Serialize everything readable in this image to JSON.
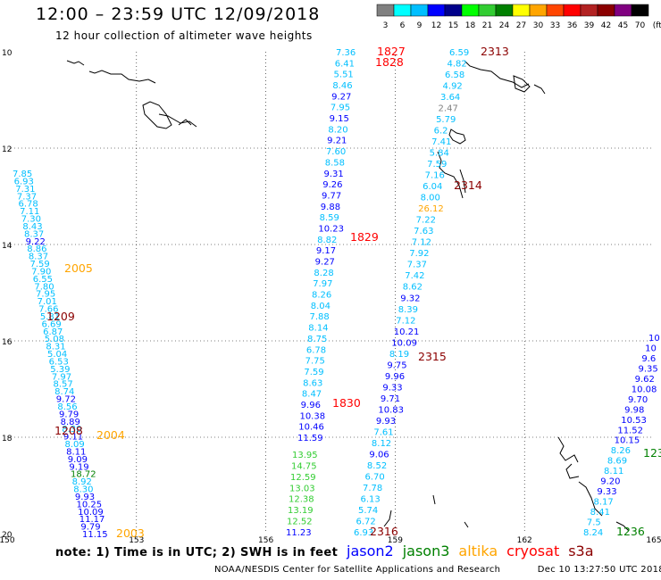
{
  "header": {
    "title": "12:00 – 23:59 UTC 12/09/2018",
    "subtitle": "12 hour collection of altimeter wave heights"
  },
  "colorbar": {
    "labels": [
      "3",
      "6",
      "9",
      "12",
      "15",
      "18",
      "21",
      "24",
      "27",
      "30",
      "33",
      "36",
      "39",
      "42",
      "45",
      "70",
      "(ft)"
    ],
    "colors": [
      "#808080",
      "#00ffff",
      "#00bfff",
      "#0000ff",
      "#00008b",
      "#00ff00",
      "#32cd32",
      "#008000",
      "#ffff00",
      "#ffa500",
      "#ff4500",
      "#ff0000",
      "#b22222",
      "#8b0000",
      "#800080",
      "#000000"
    ]
  },
  "axes": {
    "lat_labels": [
      "10",
      "12",
      "14",
      "16",
      "18",
      "20"
    ],
    "lon_labels": [
      "150",
      "153",
      "156",
      "159",
      "162",
      "165"
    ]
  },
  "tracks": {
    "track_a": {
      "color_labels": "mixed",
      "values": [
        "7.36",
        "6.41",
        "5.51",
        "8.46",
        "9.27",
        "7.95",
        "9.15",
        "8.20",
        "9.21",
        "7.60",
        "8.58",
        "9.31",
        "9.26",
        "9.77",
        "9.88",
        "8.59",
        "10.23",
        "8.82",
        "9.17",
        "9.27",
        "8.28",
        "7.97",
        "8.26",
        "8.04",
        "7.88",
        "8.14",
        "8.75",
        "6.78",
        "7.75",
        "7.59",
        "8.63",
        "8.47",
        "9.96",
        "10.38",
        "10.46",
        "11.59"
      ],
      "colors": [
        "#00bfff",
        "#00bfff",
        "#00bfff",
        "#00bfff",
        "#0000ff",
        "#00bfff",
        "#0000ff",
        "#00bfff",
        "#0000ff",
        "#00bfff",
        "#00bfff",
        "#0000ff",
        "#0000ff",
        "#0000ff",
        "#0000ff",
        "#00bfff",
        "#0000ff",
        "#00bfff",
        "#0000ff",
        "#0000ff",
        "#00bfff",
        "#00bfff",
        "#00bfff",
        "#00bfff",
        "#00bfff",
        "#00bfff",
        "#00bfff",
        "#00bfff",
        "#00bfff",
        "#00bfff",
        "#00bfff",
        "#00bfff",
        "#0000ff",
        "#0000ff",
        "#0000ff",
        "#0000ff"
      ]
    },
    "track_a_green": {
      "values": [
        "13.95",
        "14.75",
        "12.59",
        "13.03",
        "12.38",
        "13.19",
        "12.52",
        "11.23"
      ],
      "colors": [
        "#32cd32",
        "#32cd32",
        "#32cd32",
        "#32cd32",
        "#32cd32",
        "#32cd32",
        "#32cd32",
        "#0000ff"
      ]
    },
    "track_b": {
      "values": [
        "6.59",
        "4.82",
        "6.58",
        "4.92",
        "3.64",
        "2.47",
        "5.79",
        "6.2",
        "7.41",
        "5.84",
        "7.59",
        "7.16",
        "6.04",
        "8.00",
        "26.12",
        "7.22",
        "7.63",
        "7.12",
        "7.92",
        "7.37",
        "7.42",
        "8.62",
        "9.32",
        "8.39",
        "7.12",
        "10.21",
        "10.09",
        "8.19",
        "9.75",
        "9.96",
        "9.33",
        "9.71",
        "10.83",
        "9.93",
        "7.61",
        "8.12",
        "9.06",
        "8.52",
        "6.70",
        "7.78",
        "6.13",
        "5.74",
        "6.72",
        "6.93"
      ],
      "colors": [
        "#00bfff",
        "#00bfff",
        "#00bfff",
        "#00bfff",
        "#00bfff",
        "#808080",
        "#00bfff",
        "#00bfff",
        "#00bfff",
        "#00bfff",
        "#00bfff",
        "#00bfff",
        "#00bfff",
        "#00bfff",
        "#ffa500",
        "#00bfff",
        "#00bfff",
        "#00bfff",
        "#00bfff",
        "#00bfff",
        "#00bfff",
        "#00bfff",
        "#0000ff",
        "#00bfff",
        "#00bfff",
        "#0000ff",
        "#0000ff",
        "#00bfff",
        "#0000ff",
        "#0000ff",
        "#0000ff",
        "#0000ff",
        "#0000ff",
        "#0000ff",
        "#00bfff",
        "#00bfff",
        "#0000ff",
        "#00bfff",
        "#00bfff",
        "#00bfff",
        "#00bfff",
        "#00bfff",
        "#00bfff",
        "#00bfff"
      ]
    },
    "track_c": {
      "values": [
        "7.85",
        "6.93",
        "7.31",
        "7.37",
        "6.78",
        "7.11",
        "7.30",
        "8.43",
        "8.37",
        "9.22",
        "8.86",
        "8.37",
        "7.59",
        "7.90",
        "6.55",
        "7.80",
        "7.95",
        "7.01",
        "7.66",
        "5.81",
        "6.69",
        "6.87",
        "5.08",
        "8.31",
        "5.04",
        "6.53",
        "5.39",
        "7.97",
        "8.57",
        "8.74",
        "9.72",
        "8.56",
        "9.79",
        "8.89",
        "8.30",
        "9.11",
        "8.09",
        "8.11",
        "9.09",
        "9.19",
        "18.72",
        "8.92",
        "8.30",
        "9.93",
        "10.25",
        "10.09",
        "11.17",
        "9.79",
        "11.15"
      ],
      "colors": [
        "#00bfff",
        "#00bfff",
        "#00bfff",
        "#00bfff",
        "#00bfff",
        "#00bfff",
        "#00bfff",
        "#00bfff",
        "#00bfff",
        "#0000ff",
        "#00bfff",
        "#00bfff",
        "#00bfff",
        "#00bfff",
        "#00bfff",
        "#00bfff",
        "#00bfff",
        "#00bfff",
        "#00bfff",
        "#00bfff",
        "#00bfff",
        "#00bfff",
        "#00bfff",
        "#00bfff",
        "#00bfff",
        "#00bfff",
        "#00bfff",
        "#00bfff",
        "#00bfff",
        "#00bfff",
        "#0000ff",
        "#00bfff",
        "#0000ff",
        "#0000ff",
        "#00bfff",
        "#0000ff",
        "#00bfff",
        "#0000ff",
        "#0000ff",
        "#0000ff",
        "#008000",
        "#00bfff",
        "#00bfff",
        "#0000ff",
        "#0000ff",
        "#0000ff",
        "#0000ff",
        "#0000ff",
        "#0000ff"
      ]
    },
    "track_d": {
      "values": [
        "10",
        "10",
        "9.6",
        "9.35",
        "9.62",
        "10.08",
        "9.70",
        "9.98",
        "10.53",
        "11.52",
        "10.15",
        "8.26",
        "8.69",
        "8.11",
        "9.20",
        "9.33",
        "8.17",
        "8.41",
        "7.5",
        "8.24"
      ],
      "colors": [
        "#0000ff",
        "#0000ff",
        "#0000ff",
        "#0000ff",
        "#0000ff",
        "#0000ff",
        "#0000ff",
        "#0000ff",
        "#0000ff",
        "#0000ff",
        "#0000ff",
        "#00bfff",
        "#00bfff",
        "#00bfff",
        "#0000ff",
        "#0000ff",
        "#00bfff",
        "#00bfff",
        "#00bfff",
        "#00bfff"
      ]
    }
  },
  "time_labels": [
    {
      "text": "1827",
      "color": "#ff0000"
    },
    {
      "text": "1828",
      "color": "#ff0000"
    },
    {
      "text": "1829",
      "color": "#ff0000"
    },
    {
      "text": "1830",
      "color": "#ff0000"
    },
    {
      "text": "2313",
      "color": "#8b0000"
    },
    {
      "text": "2314",
      "color": "#8b0000"
    },
    {
      "text": "2315",
      "color": "#8b0000"
    },
    {
      "text": "2316",
      "color": "#8b0000"
    },
    {
      "text": "2005",
      "color": "#ffa500"
    },
    {
      "text": "2004",
      "color": "#ffa500"
    },
    {
      "text": "2003",
      "color": "#ffa500"
    },
    {
      "text": "1209",
      "color": "#8b0000"
    },
    {
      "text": "1208",
      "color": "#8b0000"
    },
    {
      "text": "1236",
      "color": "#008000"
    },
    {
      "text": "123",
      "color": "#008000"
    }
  ],
  "note": "note: 1) Time is in UTC; 2) SWH is in feet",
  "legend": [
    {
      "label": "jason2",
      "color": "#0000ff"
    },
    {
      "label": "jason3",
      "color": "#008000"
    },
    {
      "label": "altika",
      "color": "#ffa500"
    },
    {
      "label": "cryosat",
      "color": "#ff0000"
    },
    {
      "label": "s3a",
      "color": "#8b0000"
    }
  ],
  "footer": {
    "org": "NOAA/NESDIS Center for Satellite Applications and Research",
    "timestamp": "Dec 10 13:27:50 UTC 2018"
  }
}
